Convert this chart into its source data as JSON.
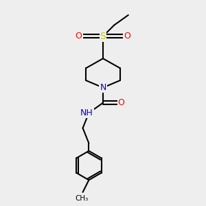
{
  "background_color": "#eeeeee",
  "atom_colors": {
    "C": "#000000",
    "N": "#0000cc",
    "O": "#ff0000",
    "S": "#cccc00",
    "H": "#666666"
  },
  "figsize": [
    3.0,
    3.0
  ],
  "dpi": 100,
  "xlim": [
    0,
    10
  ],
  "ylim": [
    0,
    10
  ]
}
